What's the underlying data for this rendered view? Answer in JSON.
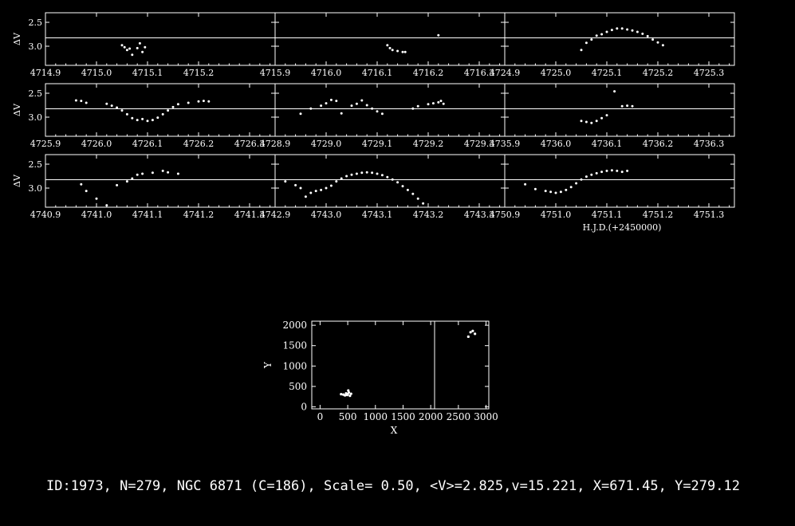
{
  "footer": "ID:1973, N=279, NGC 6871 (C=186), Scale= 0.50, <V>=2.825,v=15.221, X=671.45, Y=279.12",
  "colors": {
    "background": "#000000",
    "foreground": "#ffffff"
  },
  "chart_data": [
    {
      "type": "scatter",
      "ylabel": "ΔV",
      "ylim": [
        3.4,
        2.3
      ],
      "yticks": [
        "2.5",
        "3.0"
      ],
      "hline": 2.825,
      "panel_grid": {
        "rows": 3,
        "cols": 3
      },
      "x_note": "H.J.D.(+2450000)",
      "panels": [
        {
          "xlim": [
            4714.9,
            4715.35
          ],
          "xticks": [
            "4714.9",
            "4715.0",
            "4715.1",
            "4715.2"
          ],
          "points": [
            [
              4715.05,
              2.98
            ],
            [
              4715.055,
              3.02
            ],
            [
              4715.06,
              3.08
            ],
            [
              4715.065,
              3.05
            ],
            [
              4715.07,
              3.18
            ],
            [
              4715.08,
              3.04
            ],
            [
              4715.085,
              2.94
            ],
            [
              4715.09,
              3.12
            ],
            [
              4715.095,
              3.02
            ]
          ]
        },
        {
          "xlim": [
            4715.9,
            4716.35
          ],
          "xticks": [
            "4715.9",
            "4716.0",
            "4716.1",
            "4716.2",
            "4716.3"
          ],
          "points": [
            [
              4716.12,
              2.98
            ],
            [
              4716.125,
              3.04
            ],
            [
              4716.13,
              3.08
            ],
            [
              4716.14,
              3.1
            ],
            [
              4716.15,
              3.12
            ],
            [
              4716.155,
              3.12
            ],
            [
              4716.22,
              2.77
            ]
          ]
        },
        {
          "xlim": [
            4724.9,
            4725.35
          ],
          "xticks": [
            "4724.9",
            "4725.0",
            "4725.1",
            "4725.2",
            "4725.3"
          ],
          "points": [
            [
              4725.05,
              3.08
            ],
            [
              4725.06,
              2.93
            ],
            [
              4725.07,
              2.86
            ],
            [
              4725.08,
              2.78
            ],
            [
              4725.09,
              2.75
            ],
            [
              4725.1,
              2.7
            ],
            [
              4725.11,
              2.66
            ],
            [
              4725.12,
              2.63
            ],
            [
              4725.13,
              2.63
            ],
            [
              4725.14,
              2.65
            ],
            [
              4725.15,
              2.67
            ],
            [
              4725.16,
              2.7
            ],
            [
              4725.17,
              2.74
            ],
            [
              4725.18,
              2.79
            ],
            [
              4725.19,
              2.86
            ],
            [
              4725.2,
              2.92
            ],
            [
              4725.21,
              2.98
            ]
          ]
        },
        {
          "xlim": [
            4725.9,
            4726.35
          ],
          "xticks": [
            "4725.9",
            "4726.0",
            "4726.1",
            "4726.2",
            "4726.3"
          ],
          "points": [
            [
              4725.96,
              2.65
            ],
            [
              4725.97,
              2.66
            ],
            [
              4725.98,
              2.7
            ],
            [
              4726.02,
              2.72
            ],
            [
              4726.03,
              2.76
            ],
            [
              4726.04,
              2.8
            ],
            [
              4726.05,
              2.86
            ],
            [
              4726.06,
              2.94
            ],
            [
              4726.07,
              3.02
            ],
            [
              4726.08,
              3.06
            ],
            [
              4726.09,
              3.04
            ],
            [
              4726.1,
              3.08
            ],
            [
              4726.11,
              3.06
            ],
            [
              4726.12,
              3.01
            ],
            [
              4726.13,
              2.94
            ],
            [
              4726.14,
              2.86
            ],
            [
              4726.15,
              2.79
            ],
            [
              4726.16,
              2.73
            ],
            [
              4726.18,
              2.7
            ],
            [
              4726.2,
              2.67
            ],
            [
              4726.21,
              2.66
            ],
            [
              4726.22,
              2.67
            ]
          ]
        },
        {
          "xlim": [
            4728.9,
            4729.35
          ],
          "xticks": [
            "4728.9",
            "4729.0",
            "4729.1",
            "4729.2",
            "4729.3"
          ],
          "points": [
            [
              4728.95,
              2.93
            ],
            [
              4728.97,
              2.82
            ],
            [
              4728.99,
              2.76
            ],
            [
              4729.0,
              2.71
            ],
            [
              4729.01,
              2.64
            ],
            [
              4729.02,
              2.66
            ],
            [
              4729.03,
              2.92
            ],
            [
              4729.05,
              2.76
            ],
            [
              4729.06,
              2.72
            ],
            [
              4729.07,
              2.65
            ],
            [
              4729.08,
              2.75
            ],
            [
              4729.09,
              2.82
            ],
            [
              4729.1,
              2.88
            ],
            [
              4729.11,
              2.93
            ],
            [
              4729.17,
              2.82
            ],
            [
              4729.18,
              2.77
            ],
            [
              4729.2,
              2.73
            ],
            [
              4729.21,
              2.71
            ],
            [
              4729.22,
              2.69
            ],
            [
              4729.225,
              2.66
            ],
            [
              4729.23,
              2.72
            ]
          ]
        },
        {
          "xlim": [
            4735.9,
            4736.35
          ],
          "xticks": [
            "4735.9",
            "4736.0",
            "4736.1",
            "4736.2",
            "4736.3"
          ],
          "points": [
            [
              4736.05,
              3.08
            ],
            [
              4736.06,
              3.1
            ],
            [
              4736.07,
              3.12
            ],
            [
              4736.08,
              3.08
            ],
            [
              4736.09,
              3.02
            ],
            [
              4736.1,
              2.96
            ],
            [
              4736.115,
              2.46
            ],
            [
              4736.13,
              2.77
            ],
            [
              4736.14,
              2.76
            ],
            [
              4736.15,
              2.77
            ]
          ]
        },
        {
          "xlim": [
            4740.9,
            4741.35
          ],
          "xticks": [
            "4740.9",
            "4741.0",
            "4741.1",
            "4741.2",
            "4741.3"
          ],
          "points": [
            [
              4740.97,
              2.92
            ],
            [
              4740.98,
              3.06
            ],
            [
              4741.0,
              3.22
            ],
            [
              4741.02,
              3.36
            ],
            [
              4741.04,
              2.94
            ],
            [
              4741.06,
              2.86
            ],
            [
              4741.07,
              2.8
            ],
            [
              4741.08,
              2.72
            ],
            [
              4741.09,
              2.7
            ],
            [
              4741.11,
              2.68
            ],
            [
              4741.13,
              2.64
            ],
            [
              4741.14,
              2.67
            ],
            [
              4741.16,
              2.7
            ]
          ]
        },
        {
          "xlim": [
            4742.9,
            4743.35
          ],
          "xticks": [
            "4742.9",
            "4743.0",
            "4743.1",
            "4743.2",
            "4743.3"
          ],
          "points": [
            [
              4742.92,
              2.86
            ],
            [
              4742.94,
              2.94
            ],
            [
              4742.95,
              3.0
            ],
            [
              4742.96,
              3.18
            ],
            [
              4742.97,
              3.1
            ],
            [
              4742.98,
              3.06
            ],
            [
              4742.99,
              3.04
            ],
            [
              4743.0,
              3.0
            ],
            [
              4743.01,
              2.95
            ],
            [
              4743.02,
              2.86
            ],
            [
              4743.03,
              2.8
            ],
            [
              4743.04,
              2.75
            ],
            [
              4743.05,
              2.72
            ],
            [
              4743.06,
              2.7
            ],
            [
              4743.07,
              2.68
            ],
            [
              4743.08,
              2.67
            ],
            [
              4743.09,
              2.68
            ],
            [
              4743.1,
              2.7
            ],
            [
              4743.11,
              2.73
            ],
            [
              4743.12,
              2.77
            ],
            [
              4743.13,
              2.82
            ],
            [
              4743.14,
              2.88
            ],
            [
              4743.15,
              2.96
            ],
            [
              4743.16,
              3.04
            ],
            [
              4743.17,
              3.12
            ],
            [
              4743.18,
              3.22
            ],
            [
              4743.19,
              3.32
            ]
          ]
        },
        {
          "xlim": [
            4750.9,
            4751.35
          ],
          "xticks": [
            "4750.9",
            "4751.0",
            "4751.1",
            "4751.2",
            "4751.3"
          ],
          "points": [
            [
              4750.94,
              2.92
            ],
            [
              4750.96,
              3.02
            ],
            [
              4750.98,
              3.06
            ],
            [
              4750.99,
              3.08
            ],
            [
              4751.0,
              3.1
            ],
            [
              4751.01,
              3.08
            ],
            [
              4751.02,
              3.04
            ],
            [
              4751.03,
              2.98
            ],
            [
              4751.04,
              2.9
            ],
            [
              4751.05,
              2.82
            ],
            [
              4751.06,
              2.76
            ],
            [
              4751.07,
              2.72
            ],
            [
              4751.08,
              2.69
            ],
            [
              4751.09,
              2.66
            ],
            [
              4751.1,
              2.64
            ],
            [
              4751.11,
              2.63
            ],
            [
              4751.12,
              2.64
            ],
            [
              4751.13,
              2.66
            ],
            [
              4751.14,
              2.64
            ]
          ]
        }
      ]
    },
    {
      "type": "scatter",
      "xlabel": "X",
      "ylabel": "Y",
      "xlim": [
        -150,
        3050
      ],
      "ylim": [
        -50,
        2100
      ],
      "xticks": [
        "0",
        "500",
        "1000",
        "1500",
        "2000",
        "2500",
        "3000"
      ],
      "yticks": [
        "0",
        "500",
        "1000",
        "1500",
        "2000"
      ],
      "vline": 2070,
      "points": [
        [
          380,
          310
        ],
        [
          420,
          300
        ],
        [
          450,
          280
        ],
        [
          470,
          330
        ],
        [
          490,
          290
        ],
        [
          500,
          310
        ],
        [
          510,
          400
        ],
        [
          520,
          350
        ],
        [
          540,
          270
        ],
        [
          560,
          320
        ],
        [
          2680,
          1720
        ],
        [
          2720,
          1830
        ],
        [
          2760,
          1860
        ],
        [
          2800,
          1790
        ]
      ]
    }
  ]
}
